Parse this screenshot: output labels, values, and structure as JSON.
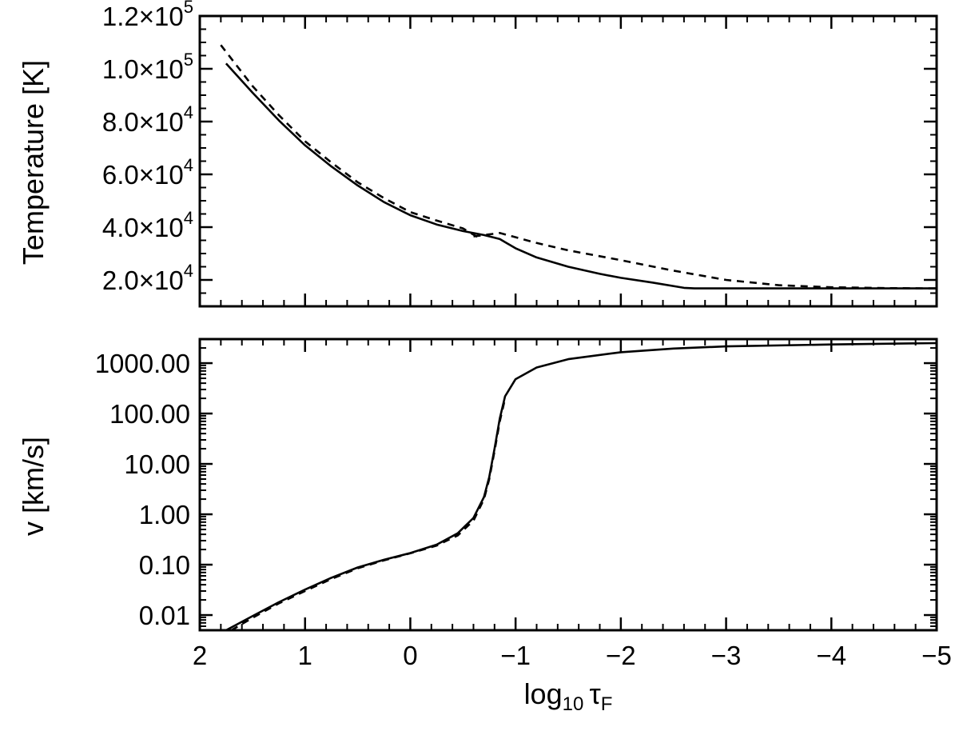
{
  "chart_data": [
    {
      "type": "line",
      "ylabel": "Temperature [K]",
      "xlim": [
        2,
        -5
      ],
      "ylim": [
        10000,
        120000
      ],
      "yticks": [
        {
          "value": 20000,
          "mantissa": "2.0",
          "exp": "4"
        },
        {
          "value": 40000,
          "mantissa": "4.0",
          "exp": "4"
        },
        {
          "value": 60000,
          "mantissa": "6.0",
          "exp": "4"
        },
        {
          "value": 80000,
          "mantissa": "8.0",
          "exp": "4"
        },
        {
          "value": 100000,
          "mantissa": "1.0",
          "exp": "5"
        },
        {
          "value": 120000,
          "mantissa": "1.2",
          "exp": "5"
        }
      ],
      "series": [
        {
          "style": "solid",
          "x": [
            1.75,
            1.5,
            1.25,
            1.0,
            0.75,
            0.5,
            0.25,
            0.0,
            -0.25,
            -0.5,
            -0.7,
            -0.85,
            -1.0,
            -1.2,
            -1.5,
            -1.8,
            -2.0,
            -2.3,
            -2.6,
            -2.7,
            -3.0,
            -4.0,
            -5.0
          ],
          "y": [
            102000,
            91000,
            80500,
            71000,
            63000,
            55800,
            49500,
            44500,
            41000,
            38500,
            37000,
            35500,
            32000,
            28500,
            25000,
            22300,
            20800,
            19000,
            17000,
            16800,
            16800,
            16800,
            16800
          ]
        },
        {
          "style": "dashed",
          "x": [
            1.8,
            1.5,
            1.25,
            1.0,
            0.75,
            0.5,
            0.25,
            0.0,
            -0.25,
            -0.5,
            -0.65
          ],
          "y": [
            109000,
            93500,
            82500,
            72500,
            64500,
            57000,
            51000,
            45700,
            42500,
            39500,
            36000
          ]
        },
        {
          "style": "dashed",
          "x": [
            -0.6,
            -0.85,
            -1.2,
            -1.5,
            -2.0,
            -2.5,
            -3.0,
            -3.5,
            -4.0,
            -4.5,
            -5.0
          ],
          "y": [
            36500,
            37800,
            34000,
            31200,
            27500,
            23500,
            20000,
            18000,
            17200,
            16900,
            16800
          ]
        }
      ]
    },
    {
      "type": "line",
      "xlabel_main": "log",
      "xlabel_sub": "10",
      "xlabel_tau": "τ",
      "xlabel_tau_sub": "F",
      "ylabel": "v [km/s]",
      "xlim": [
        2,
        -5
      ],
      "ylim": [
        0.005,
        3000
      ],
      "ylog": true,
      "xticks": [
        {
          "value": 2,
          "label": "2"
        },
        {
          "value": 1,
          "label": "1"
        },
        {
          "value": 0,
          "label": "0"
        },
        {
          "value": -1,
          "label": "−1"
        },
        {
          "value": -2,
          "label": "−2"
        },
        {
          "value": -3,
          "label": "−3"
        },
        {
          "value": -4,
          "label": "−4"
        },
        {
          "value": -5,
          "label": "−5"
        }
      ],
      "yticks": [
        {
          "value": 0.01,
          "label": "0.01"
        },
        {
          "value": 0.1,
          "label": "0.10"
        },
        {
          "value": 1,
          "label": "1.00"
        },
        {
          "value": 10,
          "label": "10.00"
        },
        {
          "value": 100,
          "label": "100.00"
        },
        {
          "value": 1000,
          "label": "1000.00"
        }
      ],
      "series": [
        {
          "style": "solid",
          "x": [
            1.75,
            1.5,
            1.25,
            1.0,
            0.75,
            0.5,
            0.25,
            0.0,
            -0.25,
            -0.45,
            -0.6,
            -0.7,
            -0.75,
            -0.8,
            -0.85,
            -0.9,
            -1.0,
            -1.2,
            -1.5,
            -2.0,
            -2.5,
            -3.0,
            -4.0,
            -5.0
          ],
          "y": [
            0.005,
            0.0095,
            0.018,
            0.032,
            0.055,
            0.088,
            0.125,
            0.17,
            0.25,
            0.42,
            0.85,
            2.2,
            5.5,
            20,
            80,
            220,
            480,
            820,
            1200,
            1650,
            1950,
            2150,
            2350,
            2500
          ]
        },
        {
          "style": "dashed",
          "x": [
            1.7,
            1.5,
            1.25,
            1.0,
            0.75,
            0.5,
            0.25,
            0.0,
            -0.25,
            -0.45,
            -0.6,
            -0.7,
            -0.75,
            -0.8,
            -0.85,
            -0.9
          ],
          "y": [
            0.005,
            0.0088,
            0.017,
            0.03,
            0.052,
            0.085,
            0.122,
            0.168,
            0.24,
            0.38,
            0.75,
            2.0,
            5.0,
            18,
            70,
            200
          ]
        }
      ]
    }
  ]
}
